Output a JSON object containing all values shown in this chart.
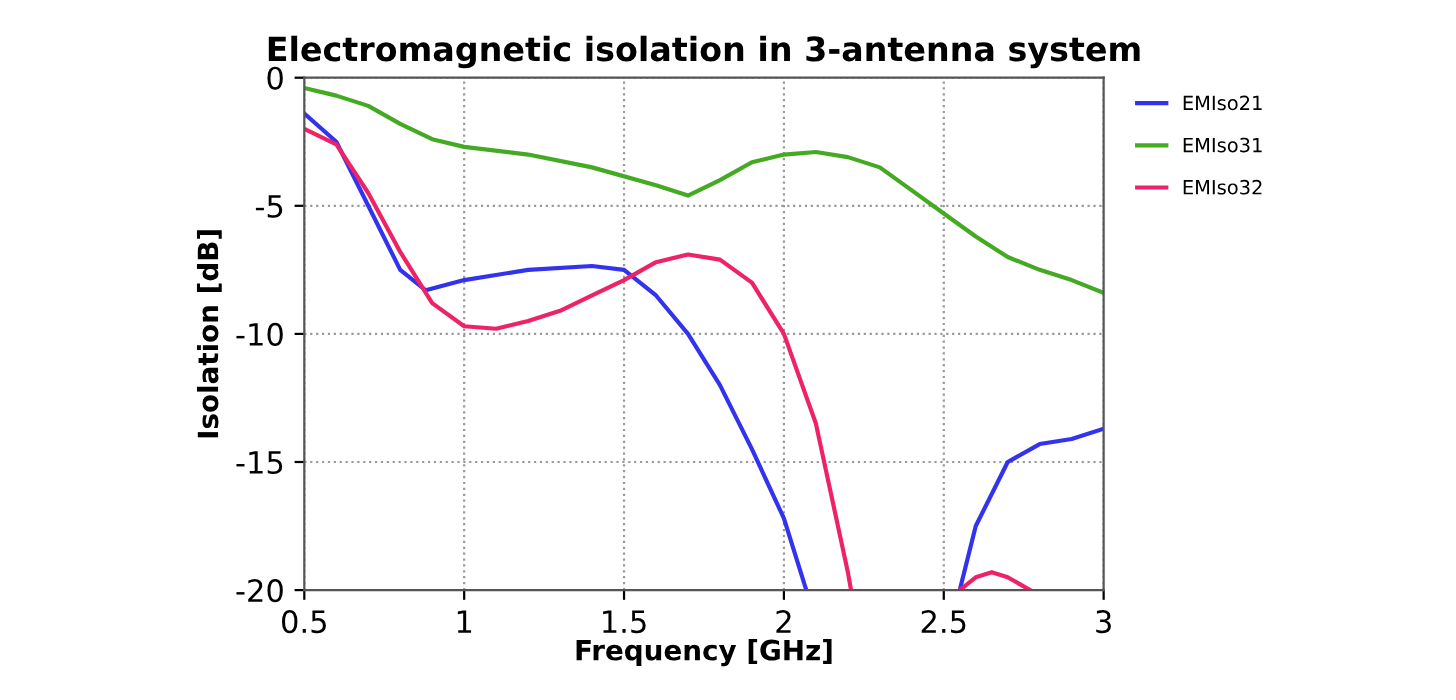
{
  "chart_data": {
    "type": "line",
    "title": "Electromagnetic isolation in 3-antenna system",
    "xlabel": "Frequency [GHz]",
    "ylabel": "Isolation [dB]",
    "xlim": [
      0.5,
      3
    ],
    "xticks": [
      0.5,
      1,
      1.5,
      2,
      2.5,
      3
    ],
    "ylim": [
      -20,
      0
    ],
    "yticks": [
      -20,
      -15,
      -10,
      -5,
      0
    ],
    "grid": true,
    "legend": "top right",
    "line_style": "solid",
    "marker": "none",
    "series": [
      {
        "name": "EMIso21",
        "color": "#3333ee",
        "x": [
          0.5,
          0.6,
          0.7,
          0.8,
          0.88,
          1.0,
          1.2,
          1.4,
          1.5,
          1.6,
          1.7,
          1.8,
          1.9,
          2.0,
          2.07,
          2.3,
          2.55,
          2.6,
          2.7,
          2.8,
          2.9,
          3.0
        ],
        "values": [
          -1.4,
          -2.5,
          -5,
          -7.5,
          -8.3,
          -7.9,
          -7.5,
          -7.35,
          -7.5,
          -8.5,
          -10,
          -12,
          -14.5,
          -17.2,
          -20,
          null,
          -20,
          -17.5,
          -15,
          -14.3,
          -14.1,
          -13.7
        ]
      },
      {
        "name": "EMIso31",
        "color": "#44aa22",
        "x": [
          0.5,
          0.6,
          0.7,
          0.8,
          0.9,
          1.0,
          1.2,
          1.4,
          1.6,
          1.7,
          1.8,
          1.9,
          2.0,
          2.1,
          2.2,
          2.3,
          2.4,
          2.5,
          2.6,
          2.7,
          2.8,
          2.9,
          3.0
        ],
        "values": [
          -0.4,
          -0.7,
          -1.1,
          -1.8,
          -2.4,
          -2.7,
          -3.0,
          -3.5,
          -4.2,
          -4.6,
          -4.0,
          -3.3,
          -3.0,
          -2.9,
          -3.1,
          -3.5,
          -4.4,
          -5.3,
          -6.2,
          -7.0,
          -7.5,
          -7.9,
          -8.4
        ]
      },
      {
        "name": "EMIso32",
        "color": "#ee2266",
        "x": [
          0.5,
          0.6,
          0.7,
          0.8,
          0.9,
          1.0,
          1.1,
          1.2,
          1.3,
          1.4,
          1.5,
          1.6,
          1.7,
          1.8,
          1.9,
          2.0,
          2.1,
          2.2,
          2.21,
          2.4,
          2.55,
          2.6,
          2.65,
          2.7,
          2.77
        ],
        "values": [
          -2.0,
          -2.6,
          -4.5,
          -6.8,
          -8.8,
          -9.7,
          -9.8,
          -9.5,
          -9.1,
          -8.5,
          -7.9,
          -7.2,
          -6.9,
          -7.1,
          -8.0,
          -10.0,
          -13.5,
          -19.3,
          -20,
          null,
          -20,
          -19.5,
          -19.3,
          -19.5,
          -20
        ]
      }
    ]
  }
}
